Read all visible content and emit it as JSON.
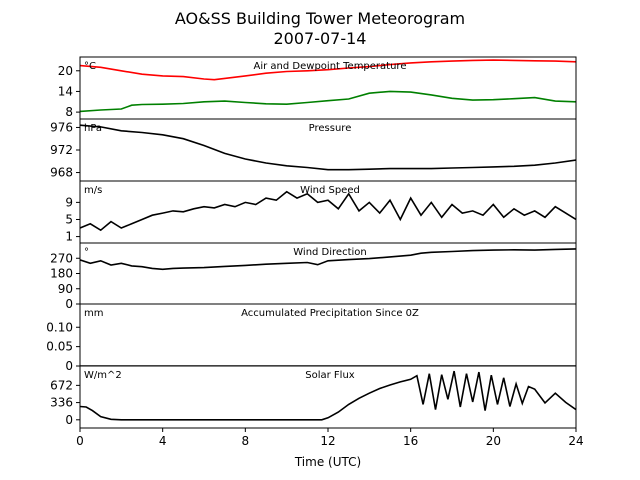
{
  "figure": {
    "title_line1": "AO&SS Building Tower Meteorogram",
    "title_line2": "2007-07-14",
    "xlabel": "Time (UTC)"
  },
  "chart_data": [
    {
      "type": "line",
      "title": "Air and Dewpoint Temperature",
      "ylabel": "°C",
      "xlim": [
        0,
        24
      ],
      "ylim": [
        6,
        24
      ],
      "yticks": [
        8,
        14,
        20
      ],
      "series": [
        {
          "color": "#ff0000",
          "x": [
            0,
            1,
            2,
            3,
            4,
            5,
            6,
            6.5,
            7,
            8,
            9,
            10,
            11,
            12,
            13,
            14,
            15,
            16,
            17,
            18,
            19,
            20,
            21,
            22,
            23,
            24
          ],
          "y": [
            21.5,
            21.0,
            20.0,
            19.0,
            18.5,
            18.3,
            17.6,
            17.4,
            17.8,
            18.5,
            19.3,
            19.8,
            20.0,
            20.3,
            20.8,
            21.2,
            21.8,
            22.3,
            22.6,
            22.8,
            23.0,
            23.1,
            23.0,
            22.9,
            22.8,
            22.6
          ]
        },
        {
          "color": "#008000",
          "x": [
            0,
            1,
            2,
            2.5,
            3,
            4,
            5,
            6,
            7,
            8,
            9,
            10,
            11,
            12,
            13,
            14,
            15,
            16,
            17,
            18,
            19,
            20,
            21,
            22,
            23,
            24
          ],
          "y": [
            8.2,
            8.6,
            8.9,
            10.0,
            10.2,
            10.3,
            10.5,
            11.0,
            11.2,
            10.8,
            10.4,
            10.3,
            10.8,
            11.3,
            11.8,
            13.5,
            14.0,
            13.8,
            13.0,
            12.0,
            11.5,
            11.6,
            11.9,
            12.2,
            11.2,
            11.0
          ]
        }
      ]
    },
    {
      "type": "line",
      "title": "Pressure",
      "ylabel": "hPa",
      "xlim": [
        0,
        24
      ],
      "ylim": [
        966.5,
        977.5
      ],
      "yticks": [
        968,
        972,
        976
      ],
      "series": [
        {
          "color": "#000000",
          "x": [
            0,
            1,
            2,
            3,
            4,
            5,
            6,
            7,
            8,
            9,
            10,
            11,
            12,
            13,
            14,
            15,
            16,
            17,
            18,
            19,
            20,
            21,
            22,
            23,
            24
          ],
          "y": [
            976.4,
            976.1,
            975.4,
            975.1,
            974.7,
            974.0,
            972.8,
            971.4,
            970.4,
            969.7,
            969.2,
            968.9,
            968.5,
            968.5,
            968.6,
            968.7,
            968.7,
            968.7,
            968.8,
            968.9,
            969.0,
            969.1,
            969.3,
            969.7,
            970.2
          ]
        }
      ]
    },
    {
      "type": "line",
      "title": "Wind Speed",
      "ylabel": "m/s",
      "xlim": [
        0,
        24
      ],
      "ylim": [
        -0.5,
        14
      ],
      "yticks": [
        1,
        5,
        9
      ],
      "series": [
        {
          "color": "#000000",
          "x": [
            0,
            0.5,
            1,
            1.5,
            2,
            2.5,
            3,
            3.5,
            4,
            4.5,
            5,
            5.5,
            6,
            6.5,
            7,
            7.5,
            8,
            8.5,
            9,
            9.5,
            10,
            10.5,
            11,
            11.5,
            12,
            12.5,
            13,
            13.5,
            14,
            14.5,
            15,
            15.5,
            16,
            16.5,
            17,
            17.5,
            18,
            18.5,
            19,
            19.5,
            20,
            20.5,
            21,
            21.5,
            22,
            22.5,
            23,
            23.5,
            24
          ],
          "y": [
            3.0,
            4.0,
            2.5,
            4.5,
            3.0,
            4.0,
            5.0,
            6.0,
            6.5,
            7.0,
            6.8,
            7.5,
            8.0,
            7.7,
            8.5,
            8.0,
            9.0,
            8.5,
            10.0,
            9.5,
            11.5,
            10.0,
            11.0,
            9.0,
            9.5,
            7.5,
            11.0,
            7.0,
            9.0,
            6.5,
            9.5,
            5.0,
            10.0,
            6.0,
            9.0,
            5.5,
            8.5,
            6.5,
            7.0,
            6.0,
            8.5,
            5.5,
            7.5,
            6.0,
            7.0,
            5.5,
            8.0,
            6.5,
            5.0
          ]
        }
      ]
    },
    {
      "type": "line",
      "title": "Wind Direction",
      "ylabel": "°",
      "xlim": [
        0,
        24
      ],
      "ylim": [
        0,
        360
      ],
      "yticks": [
        0,
        90,
        180,
        270
      ],
      "series": [
        {
          "color": "#000000",
          "x": [
            0,
            0.5,
            1,
            1.5,
            2,
            2.5,
            3,
            3.5,
            4,
            4.5,
            5,
            6,
            7,
            8,
            9,
            10,
            11,
            11.5,
            12,
            13,
            14,
            15,
            16,
            16.5,
            17,
            18,
            19,
            20,
            21,
            22,
            23,
            24
          ],
          "y": [
            260,
            240,
            255,
            230,
            240,
            225,
            220,
            210,
            205,
            210,
            212,
            215,
            222,
            228,
            235,
            240,
            245,
            232,
            255,
            262,
            268,
            278,
            288,
            300,
            305,
            310,
            315,
            318,
            320,
            318,
            322,
            325
          ]
        }
      ]
    },
    {
      "type": "line",
      "title": "Accumulated Precipitation Since 0Z",
      "ylabel": "mm",
      "xlim": [
        0,
        24
      ],
      "ylim": [
        0,
        0.16
      ],
      "yticks": [
        0.0,
        0.05,
        0.1
      ],
      "series": [
        {
          "color": "#000000",
          "x": [
            0,
            24
          ],
          "y": [
            0.0,
            0.0
          ]
        }
      ]
    },
    {
      "type": "line",
      "title": "Solar Flux",
      "ylabel": "W/m^2",
      "xlim": [
        0,
        24
      ],
      "ylim": [
        -160,
        1050
      ],
      "yticks": [
        0,
        336,
        672
      ],
      "series": [
        {
          "color": "#000000",
          "x": [
            0,
            0.3,
            0.6,
            1,
            1.5,
            2,
            3,
            4,
            5,
            6,
            7,
            8,
            9,
            10,
            11,
            11.7,
            12,
            12.5,
            13,
            13.5,
            14,
            14.5,
            15,
            15.5,
            16,
            16.3,
            16.6,
            16.9,
            17.2,
            17.5,
            17.8,
            18.1,
            18.4,
            18.7,
            19.0,
            19.3,
            19.6,
            19.9,
            20.2,
            20.5,
            20.8,
            21.1,
            21.4,
            21.7,
            22,
            22.5,
            23,
            23.5,
            24
          ],
          "y": [
            260,
            250,
            180,
            60,
            10,
            0,
            0,
            0,
            0,
            0,
            0,
            0,
            0,
            0,
            0,
            0,
            40,
            150,
            300,
            420,
            520,
            610,
            680,
            740,
            790,
            860,
            300,
            900,
            200,
            880,
            400,
            950,
            250,
            900,
            350,
            930,
            180,
            870,
            300,
            820,
            260,
            700,
            320,
            650,
            600,
            330,
            520,
            340,
            200
          ]
        }
      ]
    }
  ],
  "xaxis": {
    "ticks": [
      0,
      4,
      8,
      12,
      16,
      20,
      24
    ]
  }
}
